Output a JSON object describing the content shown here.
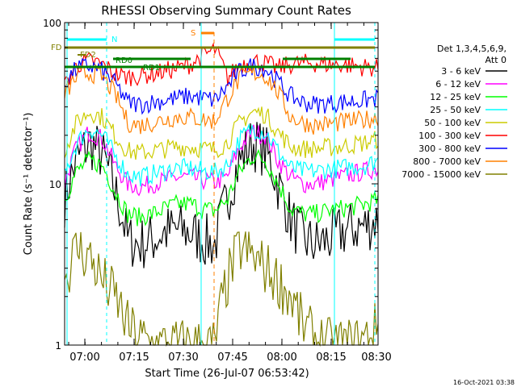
{
  "chart_data": {
    "type": "line",
    "title": "RHESSI Observing Summary Count Rates",
    "xlabel": "Start Time (26-Jul-07 06:53:42)",
    "ylabel": "Count Rate (s⁻¹ detector⁻¹)",
    "yscale": "log",
    "ylim": [
      1,
      100
    ],
    "x_tick_labels": [
      "07:00",
      "07:15",
      "07:30",
      "07:45",
      "08:00",
      "08:15",
      "08:30"
    ],
    "y_tick_labels": [
      "1",
      "10",
      "100"
    ],
    "grid": false,
    "legend_header": [
      "Det 1,3,4,5,6,9,",
      "Att 0"
    ],
    "legend_position": "right",
    "series": [
      {
        "name": "3 - 6 keV",
        "color": "#000000",
        "values": [
          8,
          14,
          18,
          15,
          9,
          4.5,
          4.2,
          4.5,
          5,
          5.2,
          5,
          4.5,
          4.2,
          8,
          14,
          18,
          16,
          10,
          6,
          4.5,
          4.2,
          4.5,
          5,
          5.3,
          5.5,
          6
        ]
      },
      {
        "name": "6 - 12 keV",
        "color": "#ff00ff",
        "values": [
          10,
          17,
          21,
          19,
          13,
          10,
          9.5,
          10,
          10.5,
          11,
          11,
          10.5,
          10.2,
          11,
          17,
          21,
          20,
          14,
          11,
          10,
          10,
          10.5,
          11,
          11.5,
          12,
          12.5
        ]
      },
      {
        "name": "12 - 25 keV",
        "color": "#00ff00",
        "values": [
          8,
          12,
          14,
          13,
          9,
          6.5,
          6.2,
          6.5,
          7,
          7.5,
          7.5,
          7,
          6.8,
          8,
          12,
          15,
          14,
          10,
          7,
          6.5,
          6.5,
          6.8,
          7,
          7.2,
          7.5,
          8
        ]
      },
      {
        "name": "25 - 50 keV",
        "color": "#00ffff",
        "values": [
          11,
          18,
          22,
          20,
          15,
          11.5,
          11,
          11.5,
          12,
          12.5,
          12.5,
          12,
          11.8,
          13,
          19,
          22,
          21,
          16,
          12.5,
          12,
          12,
          12.3,
          12.5,
          12.8,
          13,
          14
        ]
      },
      {
        "name": "50 - 100 keV",
        "color": "#cccc00",
        "values": [
          16,
          24,
          28,
          26,
          20,
          16,
          15.5,
          16,
          16.5,
          17,
          17,
          16.5,
          16.2,
          18,
          24,
          28,
          27,
          21,
          17,
          16.5,
          16.5,
          16.8,
          17,
          17.5,
          18,
          19
        ]
      },
      {
        "name": "100 - 300 keV",
        "color": "#ff0000",
        "values": [
          40,
          55,
          58,
          55,
          48,
          46,
          47,
          48,
          50,
          52,
          55,
          62,
          68,
          45,
          55,
          58,
          56,
          52,
          55,
          56,
          56,
          55,
          55,
          54,
          53,
          52
        ]
      },
      {
        "name": "300 - 800 keV",
        "color": "#0000ff",
        "values": [
          42,
          52,
          54,
          50,
          42,
          32,
          31,
          32,
          33,
          34,
          35,
          34,
          33,
          40,
          50,
          54,
          52,
          43,
          35,
          32,
          31,
          31.5,
          32,
          32.5,
          33,
          34
        ]
      },
      {
        "name": "800 - 7000 keV",
        "color": "#ff8000",
        "values": [
          36,
          46,
          49,
          46,
          36,
          24,
          23,
          24,
          25,
          26,
          26,
          25,
          24.5,
          34,
          45,
          49,
          47,
          37,
          26,
          24,
          23,
          23.5,
          24,
          24.5,
          25,
          26
        ]
      },
      {
        "name": "7000 - 15000 keV",
        "color": "#808000",
        "values": [
          2.5,
          4,
          3.5,
          2.5,
          2,
          1.3,
          1.1,
          1,
          1,
          1,
          1,
          1,
          1,
          2.5,
          4,
          3.5,
          3,
          2.5,
          2,
          1.3,
          1.1,
          1,
          1,
          1,
          1.1,
          1.3
        ]
      }
    ],
    "annotations": [
      "N",
      "FD",
      "FD2",
      "RD0",
      "RD1",
      "S"
    ],
    "timestamp": "16-Oct-2021 03:38"
  }
}
